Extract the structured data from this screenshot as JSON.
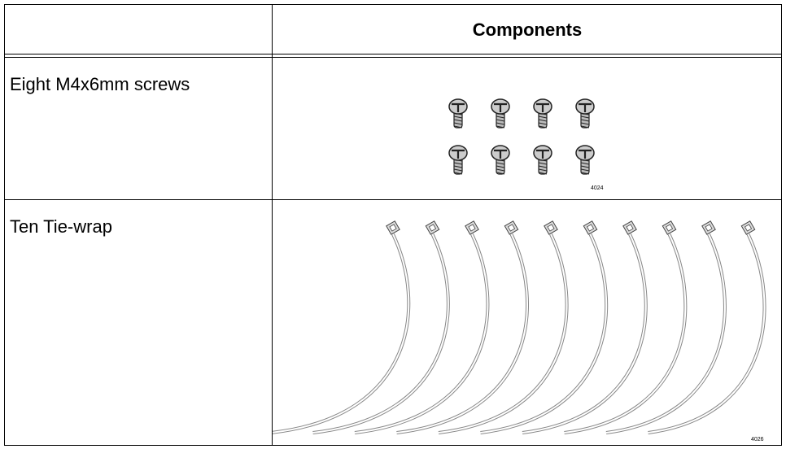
{
  "table": {
    "header": {
      "title": "Components"
    },
    "rows": [
      {
        "label": "Eight M4x6mm screws",
        "figure_id": "4024"
      },
      {
        "label": "Ten Tie-wrap",
        "figure_id": "4026"
      }
    ]
  }
}
